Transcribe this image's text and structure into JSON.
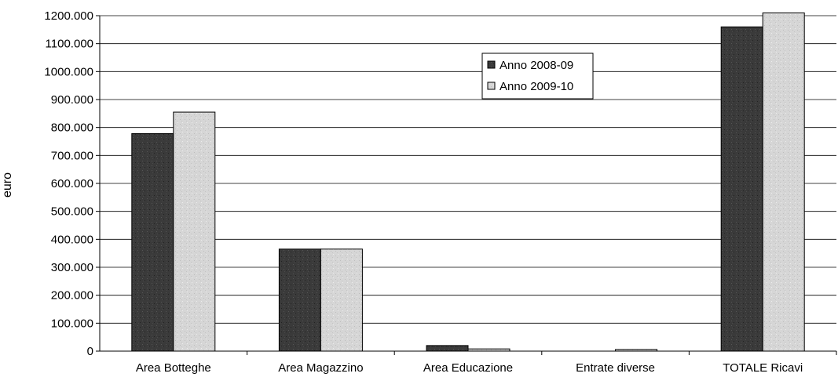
{
  "chart_data": {
    "type": "bar",
    "title": "",
    "xlabel": "",
    "ylabel": "euro",
    "ylim": [
      0,
      1200000
    ],
    "ytick_values": [
      0,
      100000,
      200000,
      300000,
      400000,
      500000,
      600000,
      700000,
      800000,
      900000,
      1000000,
      1100000,
      1200000
    ],
    "ytick_labels": [
      "0",
      "100.000",
      "200.000",
      "300.000",
      "400.000",
      "500.000",
      "600.000",
      "700.000",
      "800.000",
      "900.000",
      "1000.000",
      "1100.000",
      "1200.000"
    ],
    "categories": [
      "Area Botteghe",
      "Area Magazzino",
      "Area Educazione",
      "Entrate diverse",
      "TOTALE Ricavi"
    ],
    "series": [
      {
        "name": "Anno 2008-09",
        "values": [
          778000,
          365000,
          20000,
          0,
          1160000
        ],
        "color": "#3a3a3a"
      },
      {
        "name": "Anno 2009-10",
        "values": [
          855000,
          365000,
          8000,
          6000,
          1210000
        ],
        "color": "#d6d6d6"
      }
    ],
    "grid": true,
    "legend_position": "upper-center"
  }
}
